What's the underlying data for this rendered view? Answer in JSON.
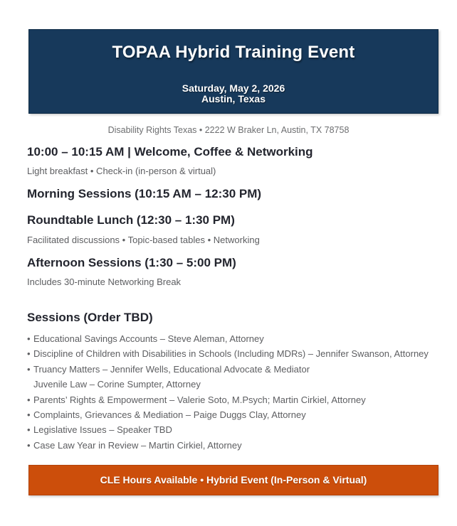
{
  "colors": {
    "header_banner_bg": "#17395b",
    "header_banner_border": "#0e2b45",
    "footer_banner_bg": "#cc4e0b",
    "footer_banner_border": "#b2430a",
    "heading_text": "#23252e",
    "body_text": "#5d5e61"
  },
  "header": {
    "title": "TOPAA Hybrid Training Event",
    "date": "Saturday, May 2, 2026",
    "location": "Austin, Texas"
  },
  "address": "Disability Rights Texas • 2222 W Braker Ln, Austin, TX 78758",
  "schedule": [
    {
      "heading": "10:00 – 10:15 AM | Welcome, Coffee & Networking",
      "detail": "Light breakfast • Check-in (in-person & virtual)"
    },
    {
      "heading": "Morning Sessions (10:15 AM – 12:30 PM)"
    },
    {
      "heading": "Roundtable Lunch (12:30 – 1:30 PM)",
      "detail": "Facilitated discussions • Topic-based tables • Networking"
    },
    {
      "heading": "Afternoon Sessions (1:30 – 5:00 PM)",
      "detail": "Includes 30-minute Networking Break"
    }
  ],
  "sessions": {
    "heading": "Sessions (Order TBD)",
    "items": [
      {
        "marker": "•",
        "text": "Educational Savings Accounts – Steve Aleman, Attorney"
      },
      {
        "marker": "•",
        "text": "Discipline of Children with Disabilities in Schools (Including MDRs) – Jennifer Swanson, Attorney"
      },
      {
        "marker": "•",
        "text": "Truancy Matters – Jennifer Wells, Educational Advocate & Mediator"
      },
      {
        "marker": "",
        "text": "Juvenile Law – Corine Sumpter, Attorney"
      },
      {
        "marker": "•",
        "text": "Parents’ Rights & Empowerment – Valerie Soto, M.Psych; Martin Cirkiel, Attorney"
      },
      {
        "marker": "•",
        "text": "Complaints, Grievances & Mediation – Paige Duggs Clay, Attorney"
      },
      {
        "marker": "•",
        "text": "Legislative Issues – Speaker TBD"
      },
      {
        "marker": "•",
        "text": "Case Law Year in Review – Martin Cirkiel, Attorney"
      }
    ]
  },
  "footer": {
    "text": "CLE Hours Available • Hybrid Event (In-Person & Virtual)"
  }
}
